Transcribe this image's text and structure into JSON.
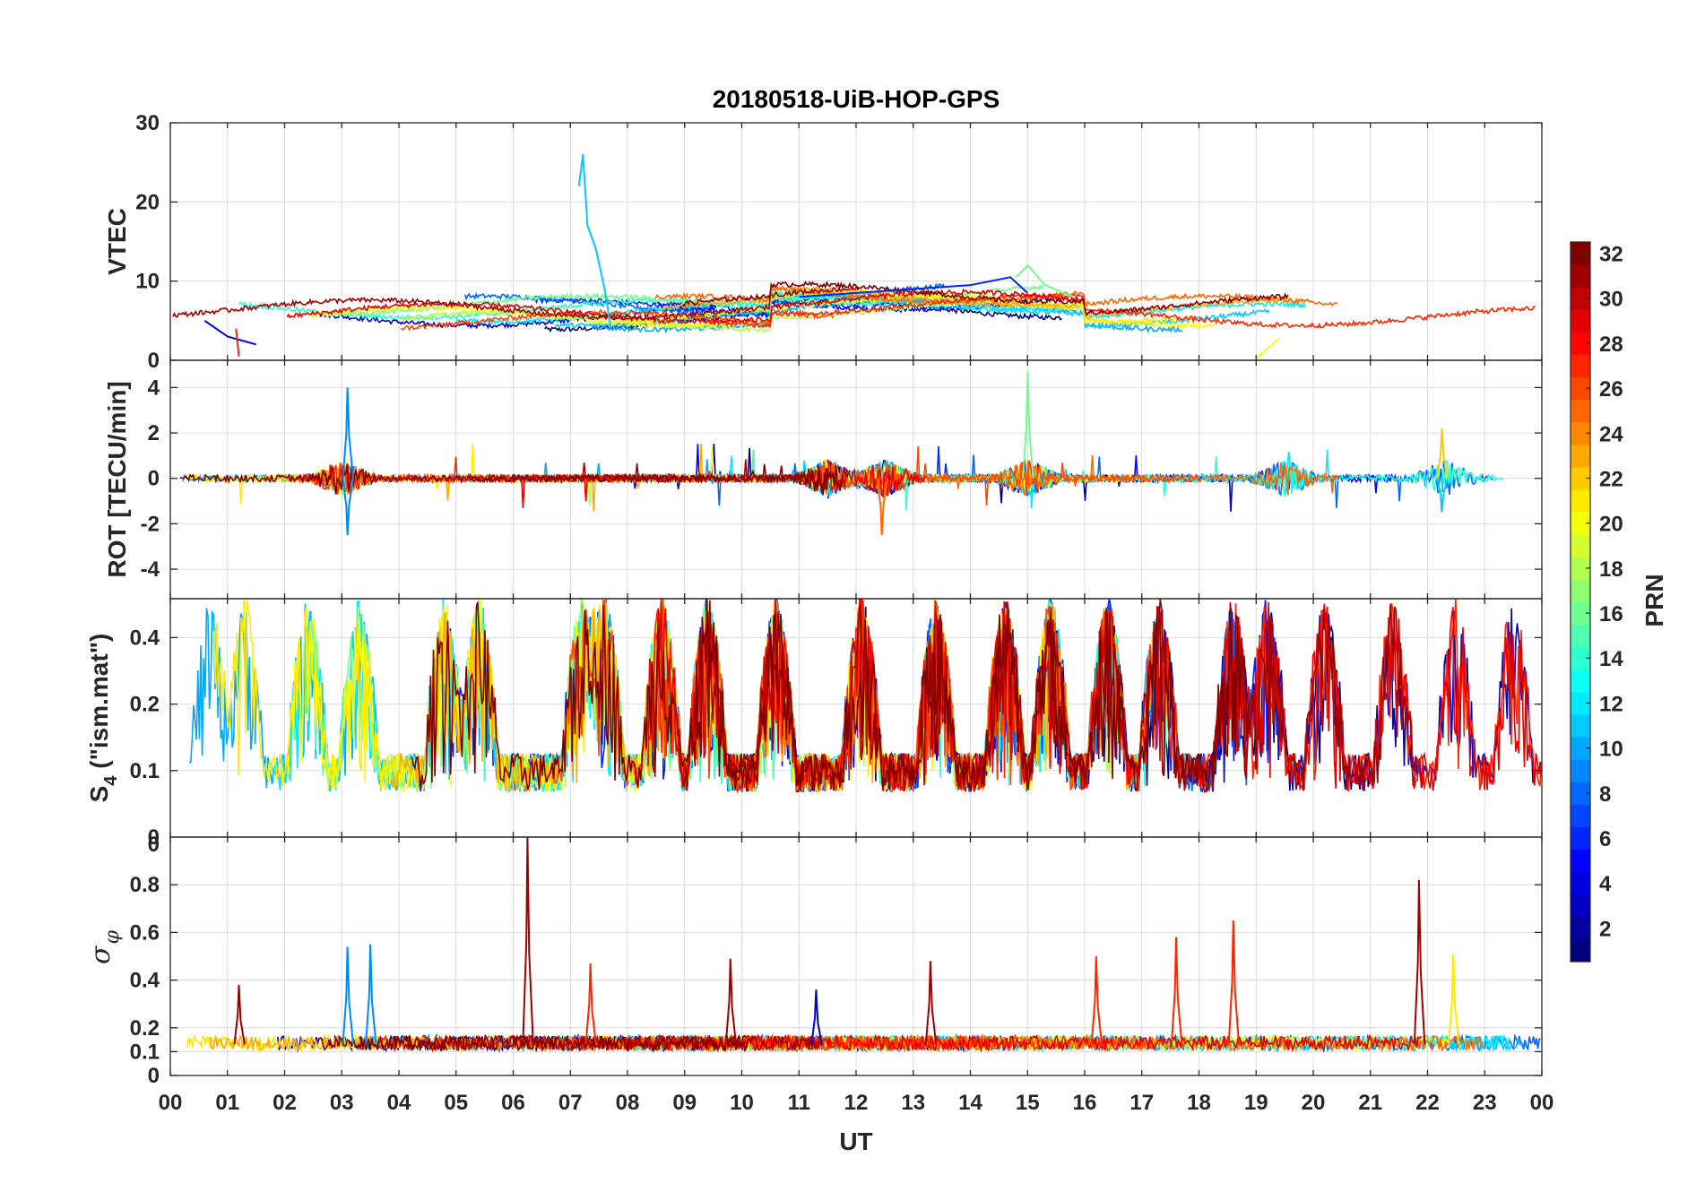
{
  "figure": {
    "title": "20180518-UiB-HOP-GPS",
    "xlabel": "UT",
    "x_ticks": [
      "00",
      "01",
      "02",
      "03",
      "04",
      "05",
      "06",
      "07",
      "08",
      "09",
      "10",
      "11",
      "12",
      "13",
      "14",
      "15",
      "16",
      "17",
      "18",
      "19",
      "20",
      "21",
      "22",
      "23",
      "00"
    ]
  },
  "colorbar": {
    "label": "PRN",
    "min": 1,
    "max": 32,
    "ticks": [
      "2",
      "4",
      "6",
      "8",
      "10",
      "12",
      "14",
      "16",
      "18",
      "20",
      "22",
      "24",
      "26",
      "28",
      "30",
      "32"
    ]
  },
  "chart_data": [
    {
      "type": "line",
      "id": "vtec",
      "ylabel": "VTEC",
      "ylim": [
        0,
        30
      ],
      "yticks": [
        0,
        10,
        20,
        30
      ],
      "ytick_labels": [
        "0",
        "10",
        "20",
        "30"
      ],
      "xlim_hours": [
        0,
        24
      ],
      "baseline": 6,
      "noise": 0.6,
      "features": [
        {
          "prn": 11,
          "x": [
            7.15,
            7.22,
            7.3,
            7.45,
            7.6,
            7.7
          ],
          "y": [
            22,
            26,
            17,
            14,
            9,
            4.5
          ],
          "note": "spike near 07 UT"
        },
        {
          "prn": 6,
          "x": [
            11.0,
            12.0,
            13.0,
            14.0,
            14.7,
            15.0
          ],
          "y": [
            8,
            8.5,
            9,
            9.5,
            10.5,
            8.5
          ]
        },
        {
          "prn": 16,
          "x": [
            14.8,
            15.0,
            15.3,
            15.8
          ],
          "y": [
            10.5,
            12,
            9.5,
            8
          ]
        },
        {
          "prn": 4,
          "x": [
            0.6,
            1.0,
            1.5
          ],
          "y": [
            5,
            3,
            2
          ]
        },
        {
          "prn": 27,
          "x": [
            1.15,
            1.2
          ],
          "y": [
            4,
            0.5
          ]
        },
        {
          "prn": 20,
          "x": [
            19.0,
            19.4
          ],
          "y": [
            0.2,
            2.8
          ]
        }
      ]
    },
    {
      "type": "line",
      "id": "rot",
      "ylabel": "ROT [TECU/min]",
      "ylim": [
        -5.3,
        5.2
      ],
      "yticks": [
        -4,
        -2,
        0,
        2,
        4
      ],
      "ytick_labels": [
        "-4",
        "-2",
        "0",
        "2",
        "4"
      ],
      "xlim_hours": [
        0,
        24
      ],
      "baseline": 0,
      "noise": 0.2,
      "active_hours": [
        3,
        11.5,
        12.5,
        15,
        19.5,
        22.3
      ],
      "peaks": [
        {
          "x": 3.1,
          "y": 4.0,
          "prn": 9
        },
        {
          "x": 3.1,
          "y": -2.5,
          "prn": 9
        },
        {
          "x": 12.45,
          "y": -2.5,
          "prn": 25
        },
        {
          "x": 15.0,
          "y": 4.7,
          "prn": 16
        },
        {
          "x": 22.25,
          "y": 2.2,
          "prn": 22
        },
        {
          "x": 22.25,
          "y": -1.5,
          "prn": 11
        }
      ]
    },
    {
      "type": "line",
      "id": "s4",
      "ylabel": "S_4 (\"ism.mat\")",
      "ylim": [
        0.05,
        0.6
      ],
      "yscale": "log",
      "yticks": [
        0.1,
        0.2,
        0.4
      ],
      "ytick_labels": [
        "0.1",
        "0.2",
        "0.4"
      ],
      "bottom_label": "0",
      "xlim_hours": [
        0,
        24
      ],
      "baseline": 0.08,
      "burst_hours": [
        0.7,
        1.3,
        2.4,
        3.3,
        4.8,
        5.4,
        7.2,
        7.6,
        8.6,
        9.4,
        10.6,
        12.1,
        13.4,
        14.6,
        15.4,
        16.4,
        17.3,
        18.6,
        19.2,
        20.2,
        21.4,
        22.5,
        23.5
      ],
      "peak_level": 0.55
    },
    {
      "type": "line",
      "id": "sigma_phi",
      "ylabel": "σ_φ",
      "ylim": [
        0,
        1.0
      ],
      "yticks": [
        0,
        0.1,
        0.2,
        0.4,
        0.6,
        0.8
      ],
      "ytick_labels": [
        "0",
        "0.1",
        "0.2",
        "0.4",
        "0.6",
        "0.8"
      ],
      "top_label": "0",
      "xlim_hours": [
        0,
        24
      ],
      "baseline": 0.13,
      "peaks": [
        {
          "x": 1.2,
          "y": 0.38,
          "prn": 31
        },
        {
          "x": 3.1,
          "y": 0.54,
          "prn": 9
        },
        {
          "x": 3.5,
          "y": 0.55,
          "prn": 9
        },
        {
          "x": 6.25,
          "y": 1.0,
          "prn": 31
        },
        {
          "x": 7.35,
          "y": 0.47,
          "prn": 27
        },
        {
          "x": 9.8,
          "y": 0.49,
          "prn": 31
        },
        {
          "x": 11.3,
          "y": 0.36,
          "prn": 4
        },
        {
          "x": 13.3,
          "y": 0.48,
          "prn": 31
        },
        {
          "x": 16.2,
          "y": 0.5,
          "prn": 27
        },
        {
          "x": 17.6,
          "y": 0.58,
          "prn": 27
        },
        {
          "x": 18.6,
          "y": 0.65,
          "prn": 27
        },
        {
          "x": 21.85,
          "y": 0.82,
          "prn": 31
        },
        {
          "x": 22.45,
          "y": 0.51,
          "prn": 21
        }
      ]
    }
  ]
}
